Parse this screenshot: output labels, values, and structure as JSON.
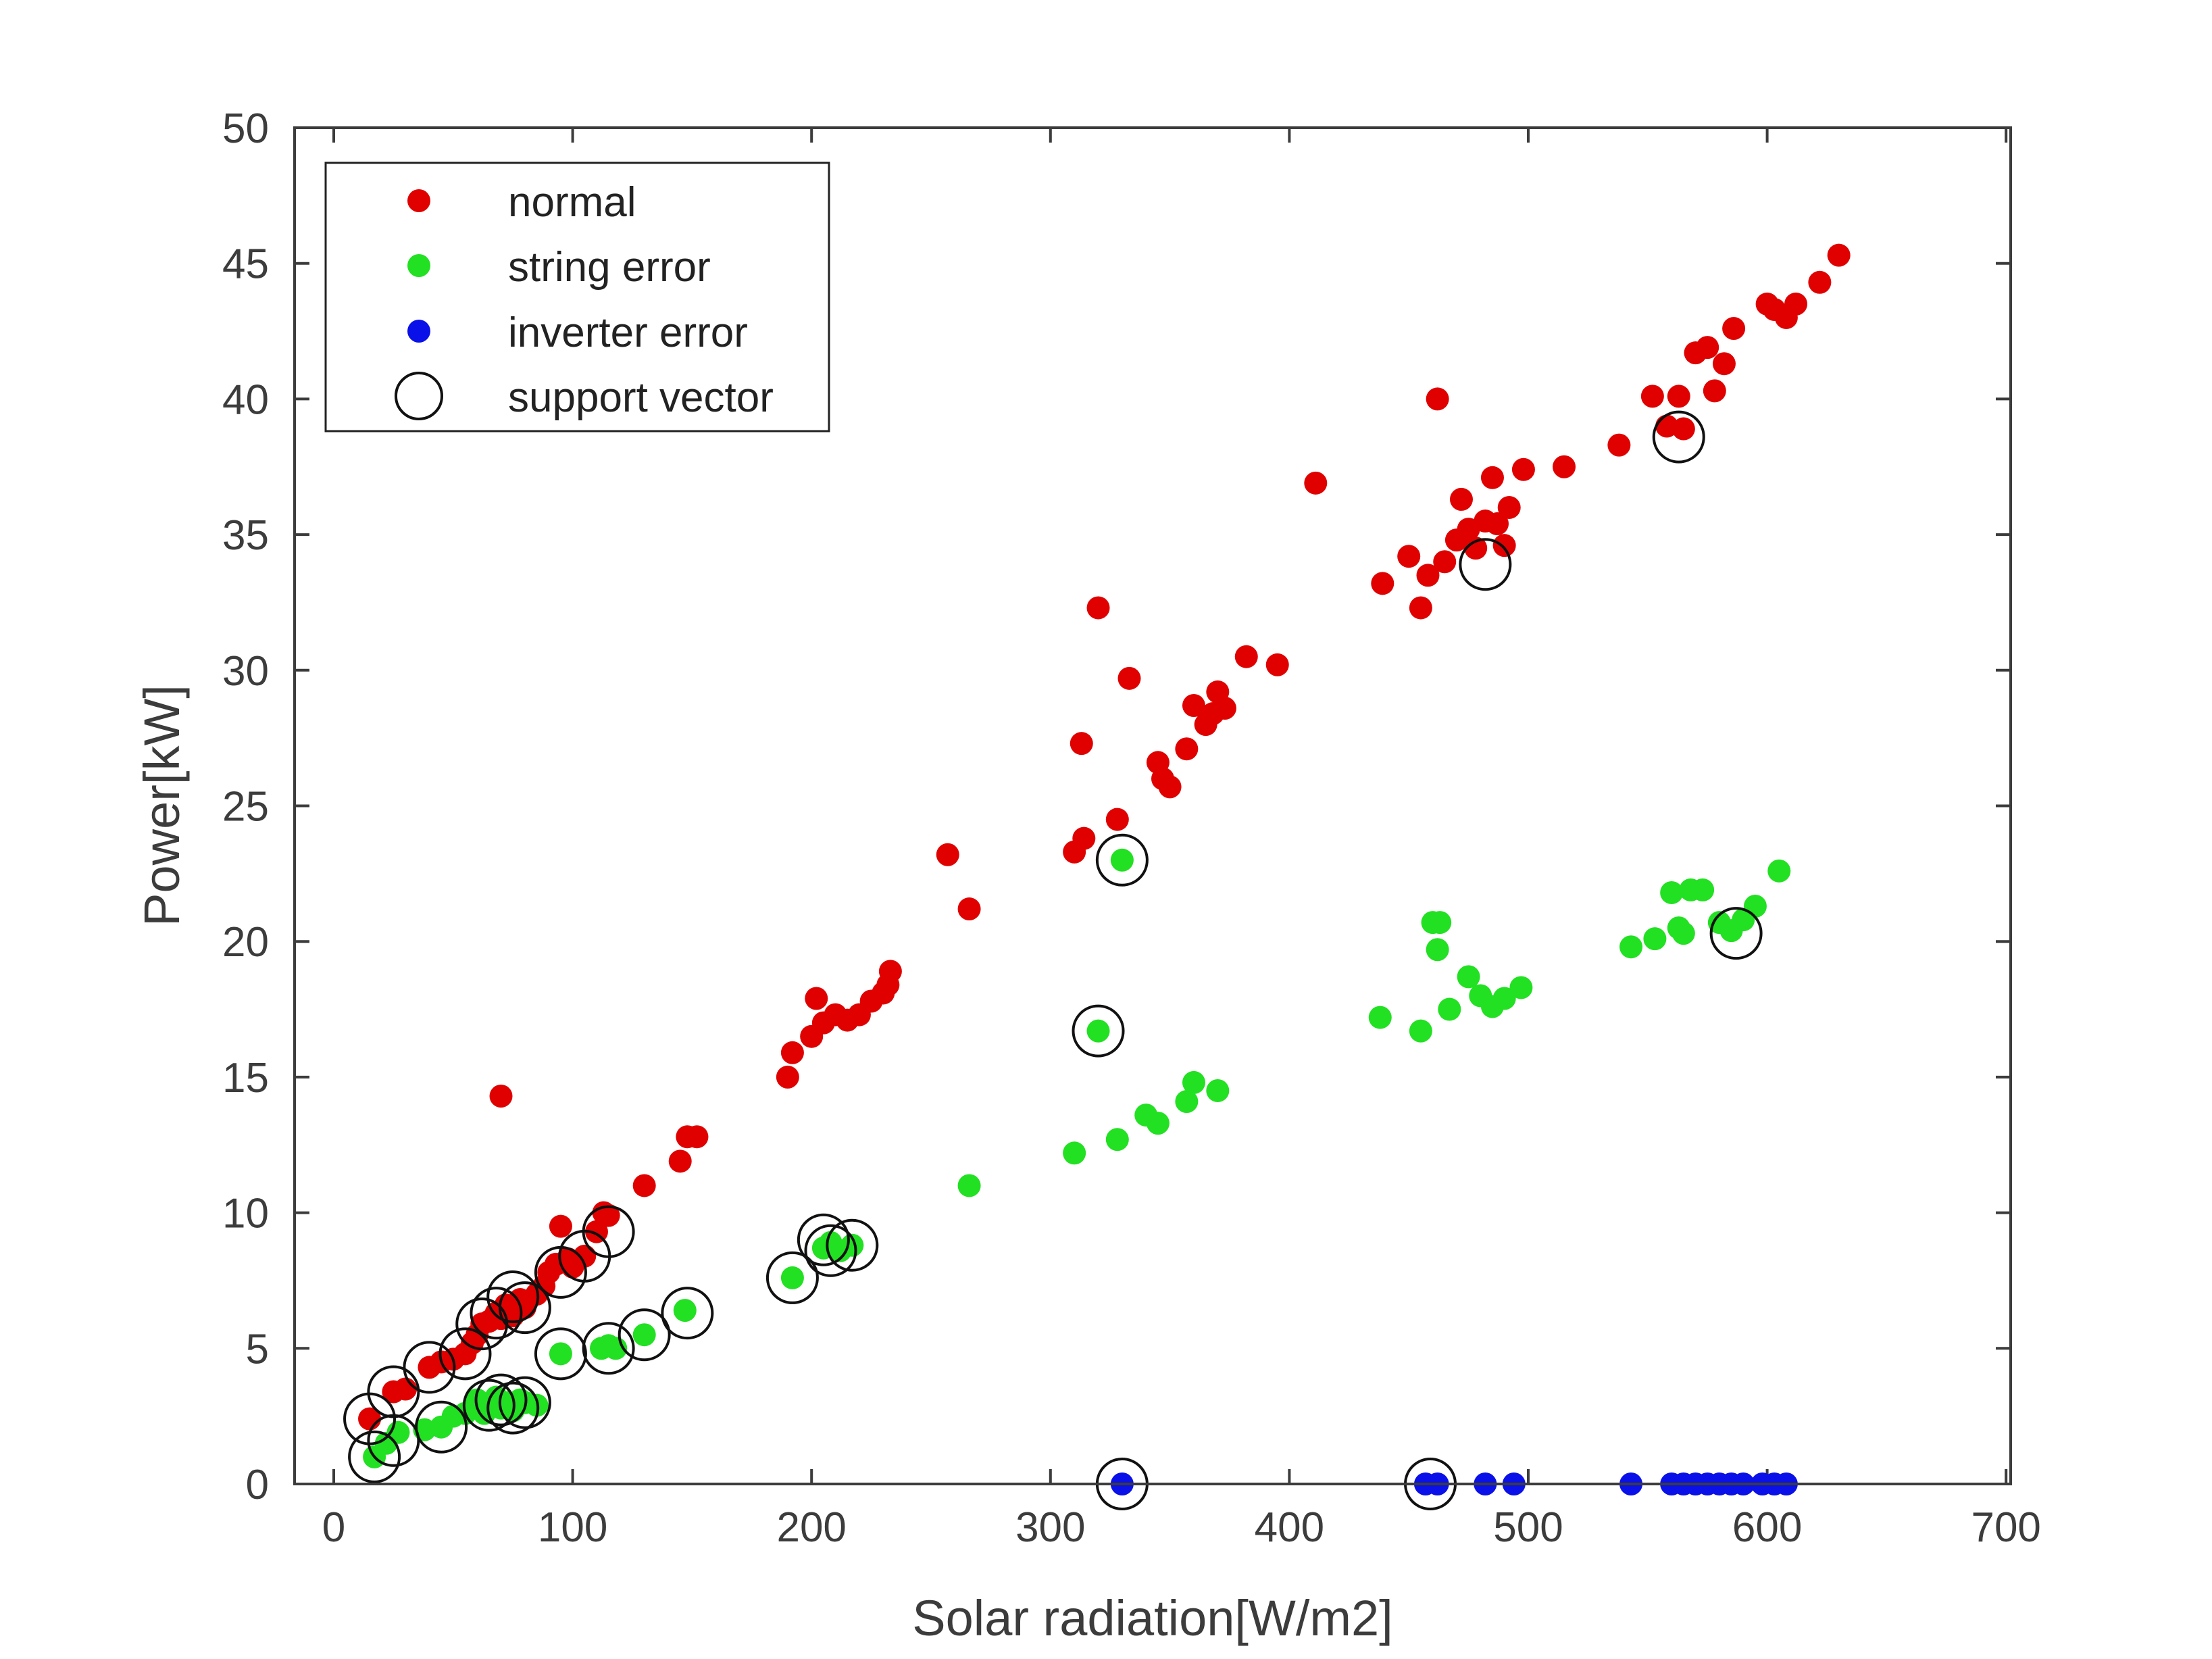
{
  "chart_data": {
    "type": "scatter",
    "xlabel": "Solar radiation[W/m2]",
    "ylabel": "Power[kW]",
    "xlim": [
      0,
      700
    ],
    "ylim": [
      0,
      50
    ],
    "xticks": [
      0,
      100,
      200,
      300,
      400,
      500,
      600,
      700
    ],
    "yticks": [
      0,
      5,
      10,
      15,
      20,
      25,
      30,
      35,
      40,
      45,
      50
    ],
    "grid": false,
    "legend_position": "top-left",
    "colors": {
      "normal": "#e00000",
      "string_error": "#22e022",
      "inverter_error": "#0a10e8",
      "support_vector": "#111111",
      "axes": "#3c3c3c"
    },
    "series": [
      {
        "name": "normal",
        "marker": "filled-dot",
        "color": "#e00000",
        "points": [
          [
            15,
            2.4
          ],
          [
            25,
            3.4
          ],
          [
            30,
            3.5
          ],
          [
            40,
            4.3
          ],
          [
            45,
            4.5
          ],
          [
            50,
            4.6
          ],
          [
            55,
            4.8
          ],
          [
            58,
            5.2
          ],
          [
            60,
            5.5
          ],
          [
            62,
            5.9
          ],
          [
            65,
            6.0
          ],
          [
            68,
            6.3
          ],
          [
            70,
            6.1
          ],
          [
            72,
            6.6
          ],
          [
            75,
            6.2
          ],
          [
            78,
            6.8
          ],
          [
            80,
            6.5
          ],
          [
            85,
            7.0
          ],
          [
            88,
            7.3
          ],
          [
            90,
            7.8
          ],
          [
            93,
            8.1
          ],
          [
            95,
            9.5
          ],
          [
            98,
            8.3
          ],
          [
            100,
            8.0
          ],
          [
            105,
            8.4
          ],
          [
            110,
            9.3
          ],
          [
            113,
            10.0
          ],
          [
            115,
            9.9
          ],
          [
            70,
            14.3
          ],
          [
            130,
            11.0
          ],
          [
            145,
            11.9
          ],
          [
            148,
            12.8
          ],
          [
            152,
            12.8
          ],
          [
            190,
            15.0
          ],
          [
            192,
            15.9
          ],
          [
            200,
            16.5
          ],
          [
            202,
            17.9
          ],
          [
            205,
            17.0
          ],
          [
            210,
            17.3
          ],
          [
            215,
            17.1
          ],
          [
            220,
            17.3
          ],
          [
            225,
            17.8
          ],
          [
            230,
            18.1
          ],
          [
            232,
            18.4
          ],
          [
            233,
            18.9
          ],
          [
            257,
            23.2
          ],
          [
            266,
            21.2
          ],
          [
            310,
            23.3
          ],
          [
            314,
            23.8
          ],
          [
            313,
            27.3
          ],
          [
            320,
            32.3
          ],
          [
            328,
            24.5
          ],
          [
            333,
            29.7
          ],
          [
            345,
            26.6
          ],
          [
            347,
            26.0
          ],
          [
            350,
            25.7
          ],
          [
            357,
            27.1
          ],
          [
            360,
            28.7
          ],
          [
            365,
            28.0
          ],
          [
            368,
            28.4
          ],
          [
            370,
            29.2
          ],
          [
            373,
            28.6
          ],
          [
            382,
            30.5
          ],
          [
            395,
            30.2
          ],
          [
            411,
            36.9
          ],
          [
            439,
            33.2
          ],
          [
            450,
            34.2
          ],
          [
            455,
            32.3
          ],
          [
            458,
            33.5
          ],
          [
            462,
            40.0
          ],
          [
            465,
            34.0
          ],
          [
            470,
            34.8
          ],
          [
            472,
            36.3
          ],
          [
            475,
            35.2
          ],
          [
            478,
            34.5
          ],
          [
            482,
            35.5
          ],
          [
            485,
            37.1
          ],
          [
            487,
            35.4
          ],
          [
            490,
            34.6
          ],
          [
            492,
            36.0
          ],
          [
            498,
            37.4
          ],
          [
            515,
            37.5
          ],
          [
            538,
            38.3
          ],
          [
            552,
            40.1
          ],
          [
            558,
            39.0
          ],
          [
            563,
            40.1
          ],
          [
            565,
            38.9
          ],
          [
            570,
            41.7
          ],
          [
            575,
            41.9
          ],
          [
            578,
            40.3
          ],
          [
            582,
            41.3
          ],
          [
            586,
            42.6
          ],
          [
            600,
            43.5
          ],
          [
            603,
            43.3
          ],
          [
            608,
            43.0
          ],
          [
            612,
            43.5
          ],
          [
            622,
            44.3
          ],
          [
            630,
            45.3
          ]
        ]
      },
      {
        "name": "string error",
        "marker": "filled-dot",
        "color": "#22e022",
        "points": [
          [
            17,
            1.0
          ],
          [
            22,
            1.5
          ],
          [
            27,
            1.9
          ],
          [
            38,
            2.0
          ],
          [
            45,
            2.1
          ],
          [
            50,
            2.5
          ],
          [
            55,
            2.6
          ],
          [
            60,
            3.1
          ],
          [
            63,
            2.6
          ],
          [
            66,
            2.9
          ],
          [
            68,
            3.2
          ],
          [
            70,
            2.8
          ],
          [
            73,
            3.0
          ],
          [
            75,
            2.7
          ],
          [
            78,
            3.1
          ],
          [
            80,
            3.0
          ],
          [
            85,
            2.9
          ],
          [
            95,
            4.8
          ],
          [
            112,
            5.0
          ],
          [
            115,
            5.1
          ],
          [
            118,
            5.0
          ],
          [
            130,
            5.5
          ],
          [
            147,
            6.4
          ],
          [
            192,
            7.6
          ],
          [
            205,
            8.7
          ],
          [
            208,
            8.9
          ],
          [
            212,
            8.6
          ],
          [
            217,
            8.8
          ],
          [
            266,
            11.0
          ],
          [
            310,
            12.2
          ],
          [
            320,
            16.7
          ],
          [
            328,
            12.7
          ],
          [
            330,
            23.0
          ],
          [
            340,
            13.6
          ],
          [
            345,
            13.3
          ],
          [
            357,
            14.1
          ],
          [
            360,
            14.8
          ],
          [
            370,
            14.5
          ],
          [
            438,
            17.2
          ],
          [
            455,
            16.7
          ],
          [
            460,
            20.7
          ],
          [
            462,
            19.7
          ],
          [
            463,
            20.7
          ],
          [
            467,
            17.5
          ],
          [
            475,
            18.7
          ],
          [
            480,
            18.0
          ],
          [
            485,
            17.6
          ],
          [
            490,
            17.9
          ],
          [
            497,
            18.3
          ],
          [
            543,
            19.8
          ],
          [
            553,
            20.1
          ],
          [
            560,
            21.8
          ],
          [
            563,
            20.5
          ],
          [
            565,
            20.3
          ],
          [
            568,
            21.9
          ],
          [
            573,
            21.9
          ],
          [
            580,
            20.7
          ],
          [
            585,
            20.4
          ],
          [
            590,
            20.8
          ],
          [
            595,
            21.3
          ],
          [
            605,
            22.6
          ]
        ]
      },
      {
        "name": "inverter error",
        "marker": "filled-dot",
        "color": "#0a10e8",
        "points": [
          [
            330,
            0
          ],
          [
            457,
            0
          ],
          [
            462,
            0
          ],
          [
            482,
            0
          ],
          [
            494,
            0
          ],
          [
            543,
            0
          ],
          [
            560,
            0
          ],
          [
            565,
            0
          ],
          [
            570,
            0
          ],
          [
            575,
            0
          ],
          [
            580,
            0
          ],
          [
            585,
            0
          ],
          [
            590,
            0
          ],
          [
            598,
            0
          ],
          [
            603,
            0
          ],
          [
            608,
            0
          ]
        ]
      },
      {
        "name": "support vector",
        "marker": "open-circle",
        "color": "#111111",
        "points": [
          [
            15,
            2.4
          ],
          [
            25,
            3.4
          ],
          [
            40,
            4.3
          ],
          [
            55,
            4.8
          ],
          [
            62,
            5.9
          ],
          [
            68,
            6.3
          ],
          [
            75,
            6.9
          ],
          [
            80,
            6.5
          ],
          [
            95,
            7.8
          ],
          [
            105,
            8.4
          ],
          [
            115,
            9.3
          ],
          [
            17,
            1.0
          ],
          [
            25,
            1.6
          ],
          [
            45,
            2.1
          ],
          [
            65,
            2.9
          ],
          [
            70,
            3.1
          ],
          [
            75,
            2.8
          ],
          [
            80,
            3.0
          ],
          [
            95,
            4.8
          ],
          [
            115,
            5.0
          ],
          [
            130,
            5.5
          ],
          [
            148,
            6.3
          ],
          [
            192,
            7.6
          ],
          [
            205,
            9.0
          ],
          [
            208,
            8.6
          ],
          [
            217,
            8.8
          ],
          [
            320,
            16.7
          ],
          [
            330,
            23.0
          ],
          [
            482,
            33.9
          ],
          [
            563,
            38.6
          ],
          [
            587,
            20.3
          ],
          [
            330,
            0
          ],
          [
            459,
            0
          ]
        ]
      }
    ]
  }
}
